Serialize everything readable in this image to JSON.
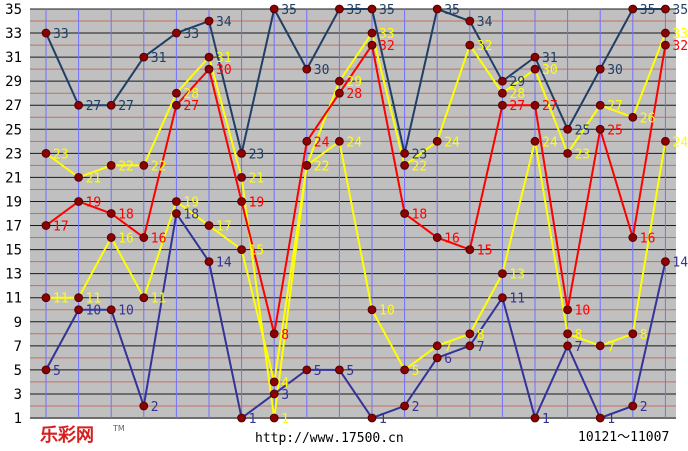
{
  "chart_data": {
    "type": "line",
    "x": [
      1,
      2,
      3,
      4,
      5,
      6,
      7,
      8,
      9,
      10,
      11,
      12,
      13,
      14,
      15,
      16,
      17,
      18,
      19,
      20
    ],
    "y_ticks": [
      1,
      3,
      5,
      7,
      9,
      11,
      13,
      15,
      17,
      19,
      21,
      23,
      25,
      27,
      29,
      31,
      33,
      35
    ],
    "ylim": [
      1,
      35
    ],
    "grid": true,
    "series": [
      {
        "color": "#1f3f66",
        "values": [
          33,
          27,
          27,
          31,
          33,
          34,
          23,
          35,
          30,
          35,
          35,
          23,
          35,
          34,
          29,
          31,
          25,
          30,
          35,
          35
        ]
      },
      {
        "color": "#ffff00",
        "values": [
          23,
          21,
          22,
          22,
          28,
          31,
          21,
          1,
          22,
          29,
          33,
          22,
          24,
          32,
          28,
          30,
          23,
          27,
          26,
          33
        ]
      },
      {
        "color": "#ff0000",
        "values": [
          17,
          19,
          18,
          16,
          27,
          30,
          19,
          8,
          24,
          28,
          32,
          18,
          16,
          15,
          27,
          27,
          10,
          25,
          16,
          32
        ]
      },
      {
        "color": "#ffff00",
        "values": [
          11,
          11,
          16,
          11,
          19,
          17,
          15,
          4,
          22,
          24,
          10,
          5,
          7,
          8,
          13,
          24,
          8,
          7,
          8,
          24
        ]
      },
      {
        "color": "#333399",
        "values": [
          5,
          10,
          10,
          2,
          18,
          14,
          1,
          3,
          5,
          5,
          1,
          2,
          6,
          7,
          11,
          1,
          7,
          1,
          2,
          14
        ]
      }
    ]
  },
  "footer": {
    "logo": "乐彩网",
    "trademark": "TM",
    "url": "http://www.17500.cn",
    "range": "10121～11007"
  }
}
